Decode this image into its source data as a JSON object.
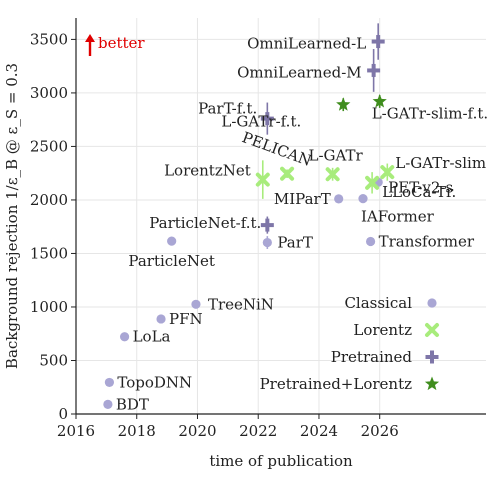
{
  "chart_data": {
    "type": "scatter",
    "xlabel": "time of publication",
    "ylabel": "Background rejection 1/ε_B @ ε_S = 0.3",
    "xlim": [
      2016,
      2029.5
    ],
    "ylim": [
      0,
      3700
    ],
    "xticks": [
      2016,
      2018,
      2020,
      2022,
      2024,
      2026
    ],
    "yticks": [
      0,
      500,
      1000,
      1500,
      2000,
      2500,
      3000,
      3500
    ],
    "grid": true,
    "legend_position": "bottom-right",
    "annotation": "better",
    "colors": {
      "Classical": "#a9a6d4",
      "Lorentz": "#a8ec7c",
      "Pretrained": "#7e76a8",
      "Pretrained+Lorentz": "#3f8d1d",
      "annotation": "#e00000"
    },
    "series": [
      {
        "name": "Classical",
        "marker": "circle",
        "points": [
          {
            "label": "BDT",
            "x": 2017.05,
            "y": 90
          },
          {
            "label": "TopoDNN",
            "x": 2017.1,
            "y": 295
          },
          {
            "label": "LoLa",
            "x": 2017.6,
            "y": 722
          },
          {
            "label": "PFN",
            "x": 2018.8,
            "y": 888
          },
          {
            "label": "TreeNiN",
            "x": 2019.95,
            "y": 1025
          },
          {
            "label": "ParticleNet",
            "x": 2019.15,
            "y": 1615
          },
          {
            "label": "ParT",
            "x": 2022.3,
            "y": 1602
          },
          {
            "label": "MIParT",
            "x": 2024.65,
            "y": 2010
          },
          {
            "label": "Transformer",
            "x": 2025.7,
            "y": 1612
          },
          {
            "label": "IAFormer",
            "x": 2025.45,
            "y": 2012
          },
          {
            "label": "PET-v2-s",
            "x": 2025.95,
            "y": 2165
          }
        ]
      },
      {
        "name": "Lorentz",
        "marker": "cross",
        "points": [
          {
            "label": "LorentzNet",
            "x": 2022.15,
            "y": 2190
          },
          {
            "label": "PELICAN",
            "x": 2022.95,
            "y": 2245
          },
          {
            "label": "L-GATr",
            "x": 2024.45,
            "y": 2240
          },
          {
            "label": "LLoCa-Tr.",
            "x": 2025.75,
            "y": 2160
          },
          {
            "label": "L-GATr-slim",
            "x": 2026.25,
            "y": 2260
          }
        ]
      },
      {
        "name": "Pretrained",
        "marker": "plus",
        "points": [
          {
            "label": "ParticleNet-f.t.",
            "x": 2022.3,
            "y": 1765
          },
          {
            "label": "ParT-f.t.",
            "x": 2022.3,
            "y": 2760
          },
          {
            "label": "OmniLearned-M",
            "x": 2025.8,
            "y": 3210
          },
          {
            "label": "OmniLearned-L",
            "x": 2025.95,
            "y": 3480
          }
        ]
      },
      {
        "name": "Pretrained+Lorentz",
        "marker": "star",
        "points": [
          {
            "label": "L-GATr-f.t.",
            "x": 2024.8,
            "y": 2890
          },
          {
            "label": "L-GATr-slim-f.t.",
            "x": 2026.0,
            "y": 2920
          }
        ]
      }
    ]
  }
}
